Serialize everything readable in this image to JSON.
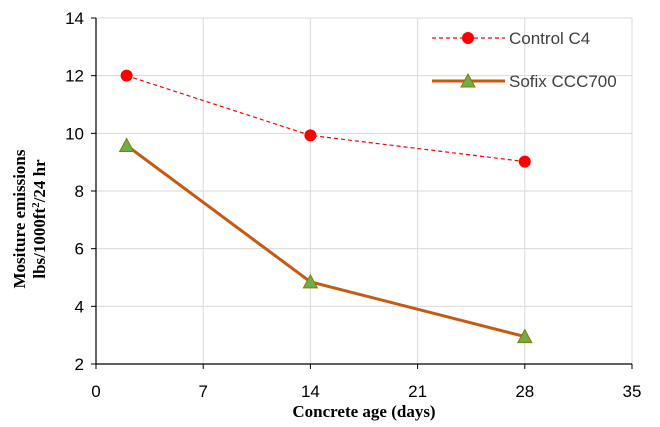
{
  "chart_data": {
    "type": "line",
    "xlabel": "Concrete age (days)",
    "ylabel_line1": "Mositure emissions",
    "ylabel_line2_pre": "lbs/1000ft",
    "ylabel_line2_sup": "2",
    "ylabel_line2_post": "/24 hr",
    "xlim": [
      0,
      35
    ],
    "ylim": [
      2,
      14
    ],
    "xticks": [
      0,
      7,
      14,
      21,
      28,
      35
    ],
    "yticks": [
      2,
      4,
      6,
      8,
      10,
      12,
      14
    ],
    "grid": true,
    "legend_position": "top-right",
    "series": [
      {
        "name": "Control C4",
        "x": [
          2,
          14,
          28
        ],
        "y": [
          12.0,
          9.93,
          9.02
        ],
        "line_color": "#ff0000",
        "line_style": "dashed",
        "marker": "circle",
        "marker_color": "#ff0000"
      },
      {
        "name": "Sofix CCC700",
        "x": [
          2,
          14,
          28
        ],
        "y": [
          9.58,
          4.85,
          2.95
        ],
        "line_color": "#c55a11",
        "line_style": "solid",
        "marker": "triangle",
        "marker_color": "#70ad47"
      }
    ]
  }
}
